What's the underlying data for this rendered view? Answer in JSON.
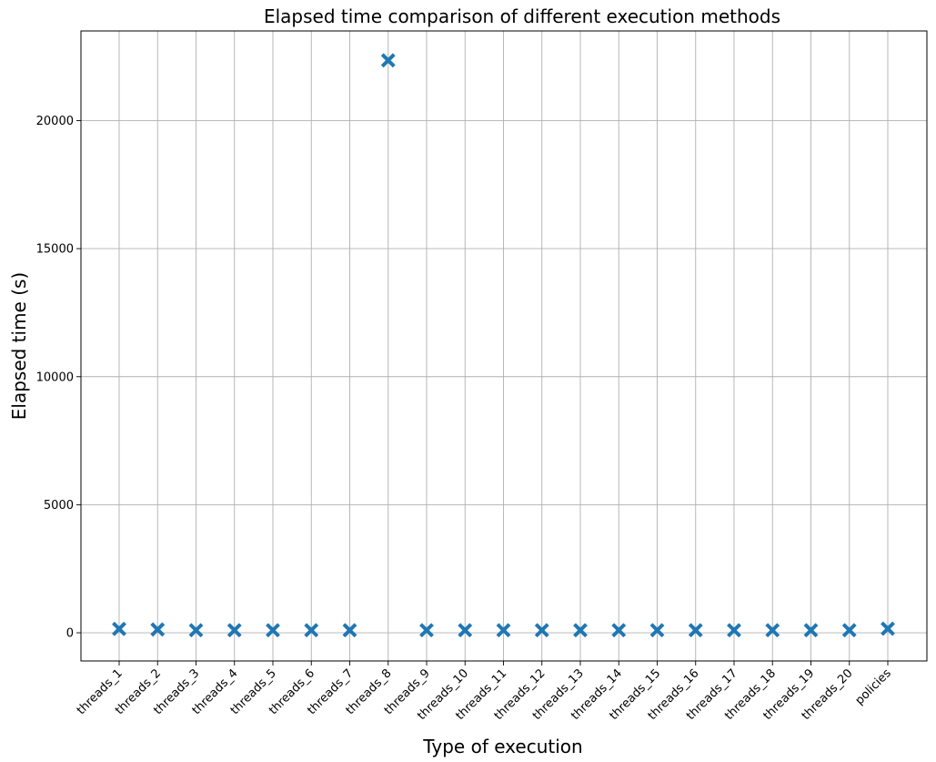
{
  "chart_data": {
    "type": "scatter",
    "title": "Elapsed time comparison of different execution methods",
    "xlabel": "Type of execution",
    "ylabel": "Elapsed time (s)",
    "categories": [
      "threads_1",
      "threads_2",
      "threads_3",
      "threads_4",
      "threads_5",
      "threads_6",
      "threads_7",
      "threads_8",
      "threads_9",
      "threads_10",
      "threads_11",
      "threads_12",
      "threads_13",
      "threads_14",
      "threads_15",
      "threads_16",
      "threads_17",
      "threads_18",
      "threads_19",
      "threads_20",
      "policies"
    ],
    "values": [
      150,
      130,
      100,
      100,
      100,
      100,
      100,
      22350,
      100,
      100,
      100,
      100,
      100,
      100,
      100,
      100,
      100,
      100,
      100,
      100,
      160
    ],
    "ylim": [
      -1100,
      23500
    ],
    "yticks": [
      0,
      5000,
      10000,
      15000,
      20000
    ],
    "grid": true,
    "marker": "x",
    "color": "#1f77b4"
  }
}
